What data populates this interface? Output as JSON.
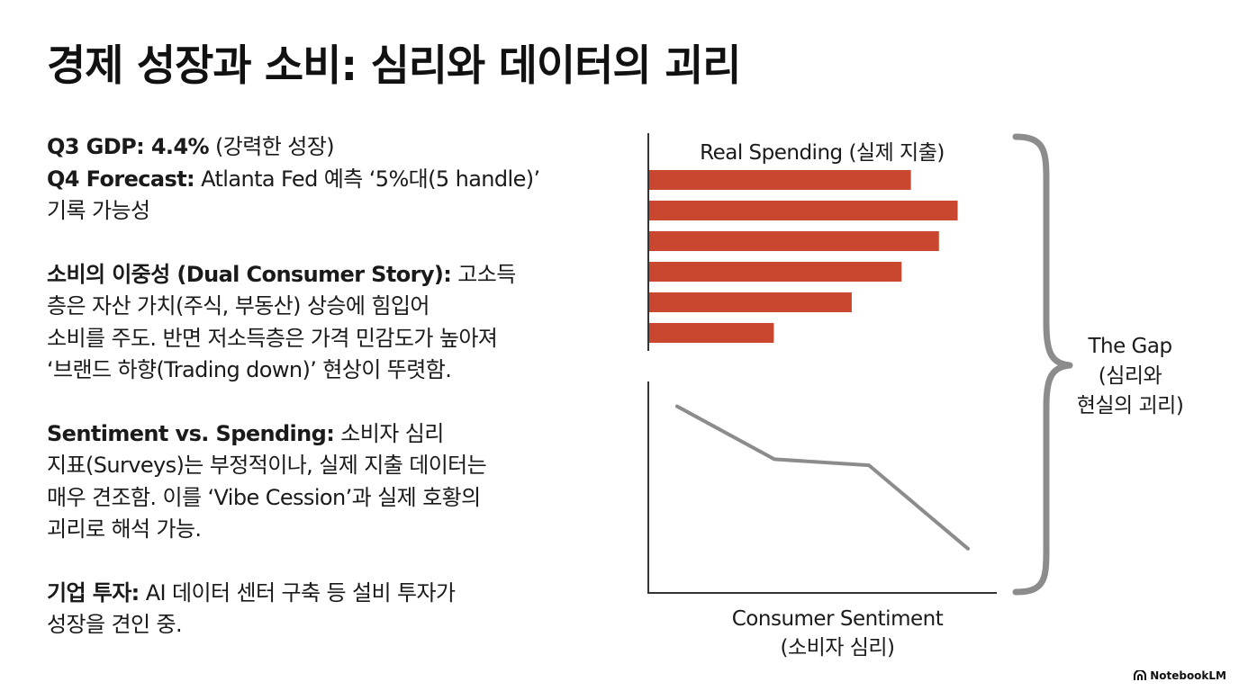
{
  "title": "경제 성장과 소비: 심리와 데이터의 괴리",
  "paragraphs": [
    {
      "lines": [
        [
          {
            "b": "Q3 GDP: 4.4%"
          },
          {
            "t": " (강력한 성장)"
          }
        ],
        [
          {
            "b": "Q4 Forecast:"
          },
          {
            "t": " Atlanta Fed 예측 ‘5%대(5 handle)’"
          }
        ],
        [
          {
            "t": "기록 가능성"
          }
        ]
      ]
    },
    {
      "lines": [
        [
          {
            "b": "소비의 이중성 (Dual Consumer Story):"
          },
          {
            "t": " 고소득"
          }
        ],
        [
          {
            "t": "층은  자산 가치(주식, 부동산) 상승에 힘입어"
          }
        ],
        [
          {
            "t": "소비를 주도. 반면 저소득층은 가격 민감도가 높아져"
          }
        ],
        [
          {
            "t": "‘브랜드 하향(Trading down)’ 현상이 뚜렷함."
          }
        ]
      ]
    },
    {
      "lines": [
        [
          {
            "b": "Sentiment vs. Spending:"
          },
          {
            "t": " 소비자 심리"
          }
        ],
        [
          {
            "t": "지표(Surveys)는 부정적이나, 실제 지출 데이터는"
          }
        ],
        [
          {
            "t": "매우 견조함. 이를 ‘Vibe Cession’과 실제 호황의"
          }
        ],
        [
          {
            "t": "괴리로 해석 가능."
          }
        ]
      ]
    },
    {
      "lines": [
        [
          {
            "b": "기업 투자:"
          },
          {
            "t": " AI 데이터 센터 구축 등 설비 투자가"
          }
        ],
        [
          {
            "t": "성장을 견인 중."
          }
        ]
      ]
    }
  ],
  "chart_data": [
    {
      "type": "bar",
      "orientation": "horizontal",
      "title": "Real Spending (실제 지출)",
      "values": [
        0.84,
        0.99,
        0.93,
        0.81,
        0.65,
        0.4
      ],
      "color": "#c8472e",
      "axis_color": "#333333"
    },
    {
      "type": "line",
      "xlabel": "Consumer Sentiment\n(소비자 심리)",
      "values": [
        0.9,
        0.64,
        0.61,
        0.2
      ],
      "color": "#8c8c8c",
      "axis_color": "#333333"
    }
  ],
  "bracket": {
    "label": "The Gap\n(심리와\n현실의 괴리)",
    "color": "#8c8c8c"
  },
  "brand": "NotebookLM"
}
